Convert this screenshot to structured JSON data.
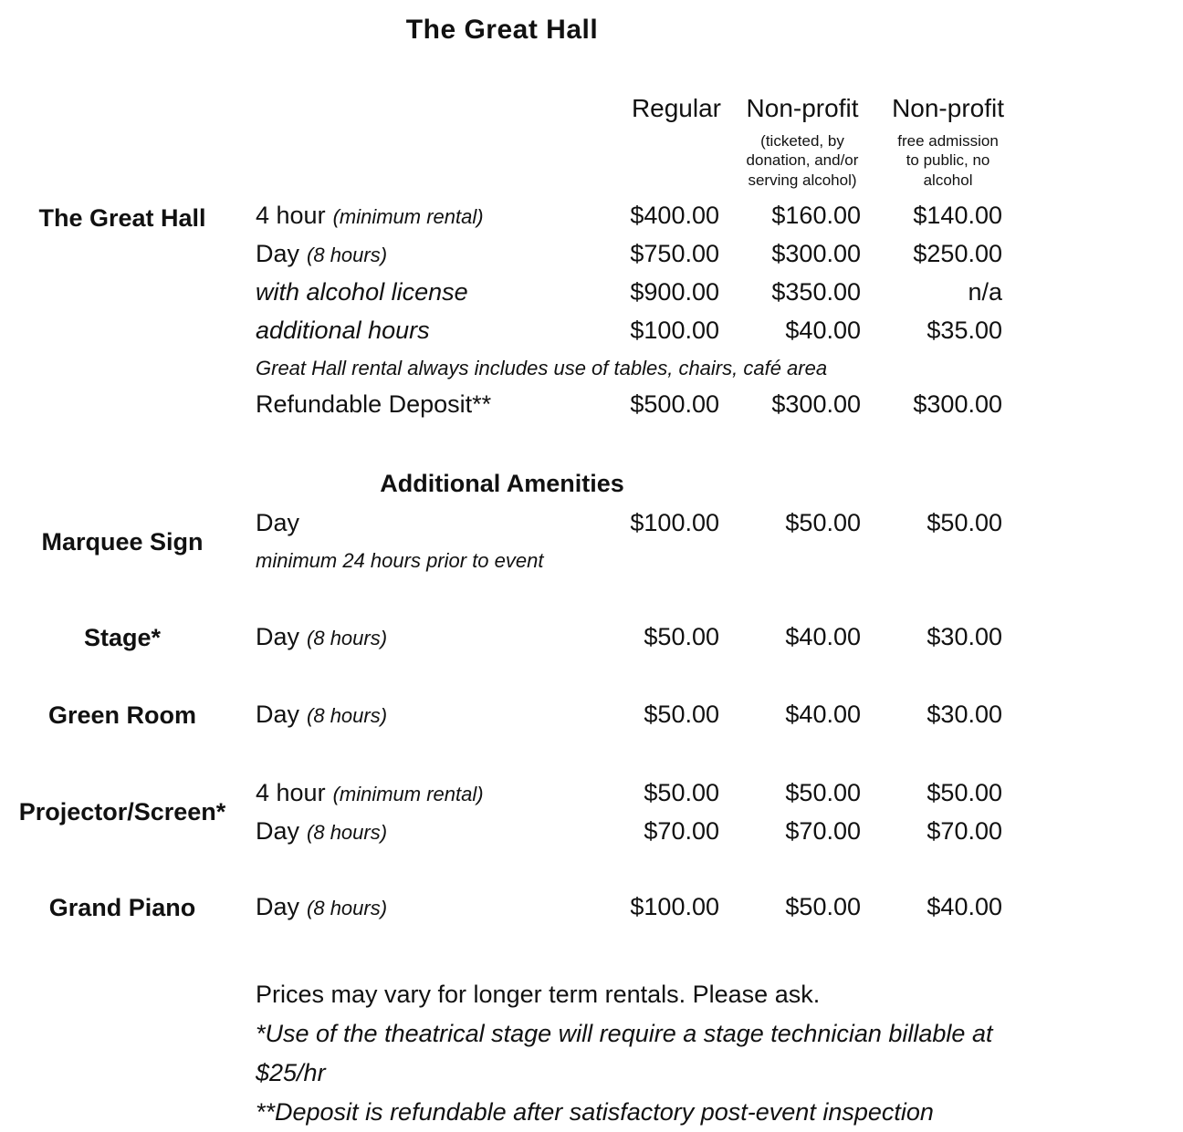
{
  "title": "The Great Hall",
  "columns": [
    {
      "label": "Regular",
      "sub": ""
    },
    {
      "label": "Non-profit",
      "sub": "(ticketed, by donation, and/or serving alcohol)"
    },
    {
      "label": "Non-profit",
      "sub": "free admission to public, no alcohol"
    }
  ],
  "sections": {
    "great_hall": {
      "category": "The Great Hall",
      "rows": [
        {
          "main": "4 hour",
          "qualifier": "(minimum rental)",
          "prices": [
            "$400.00",
            "$160.00",
            "$140.00"
          ]
        },
        {
          "main": "Day",
          "qualifier": "(8 hours)",
          "prices": [
            "$750.00",
            "$300.00",
            "$250.00"
          ]
        },
        {
          "main": "with alcohol license",
          "qualifier": "",
          "prices": [
            "$900.00",
            "$350.00",
            "n/a"
          ]
        },
        {
          "main": "additional hours",
          "qualifier": "",
          "prices": [
            "$100.00",
            "$40.00",
            "$35.00"
          ]
        }
      ],
      "note": "Great Hall rental always includes use of tables, chairs, café area",
      "deposit": {
        "main": "Refundable Deposit**",
        "prices": [
          "$500.00",
          "$300.00",
          "$300.00"
        ]
      }
    },
    "amenities_heading": "Additional Amenities",
    "marquee": {
      "category": "Marquee Sign",
      "rows": [
        {
          "main": "Day",
          "prices": [
            "$100.00",
            "$50.00",
            "$50.00"
          ]
        }
      ],
      "note": "minimum 24 hours prior to event"
    },
    "stage": {
      "category": "Stage*",
      "rows": [
        {
          "main": "Day",
          "qualifier": "(8 hours)",
          "prices": [
            "$50.00",
            "$40.00",
            "$30.00"
          ]
        }
      ]
    },
    "green_room": {
      "category": "Green Room",
      "rows": [
        {
          "main": "Day",
          "qualifier": "(8 hours)",
          "prices": [
            "$50.00",
            "$40.00",
            "$30.00"
          ]
        }
      ]
    },
    "projector": {
      "category": "Projector/Screen*",
      "rows": [
        {
          "main": "4 hour",
          "qualifier": "(minimum rental)",
          "prices": [
            "$50.00",
            "$50.00",
            "$50.00"
          ]
        },
        {
          "main": "Day",
          "qualifier": "(8 hours)",
          "prices": [
            "$70.00",
            "$70.00",
            "$70.00"
          ]
        }
      ]
    },
    "grand_piano": {
      "category": "Grand Piano",
      "rows": [
        {
          "main": "Day",
          "qualifier": "(8 hours)",
          "prices": [
            "$100.00",
            "$50.00",
            "$40.00"
          ]
        }
      ]
    }
  },
  "footer": {
    "line1": "Prices may vary for longer term rentals. Please ask.",
    "line2": "*Use of the theatrical stage will require a stage technician billable at $25/hr",
    "line3": "**Deposit is refundable after satisfactory post-event inspection"
  },
  "colors": {
    "text": "#111111",
    "background": "#ffffff"
  }
}
